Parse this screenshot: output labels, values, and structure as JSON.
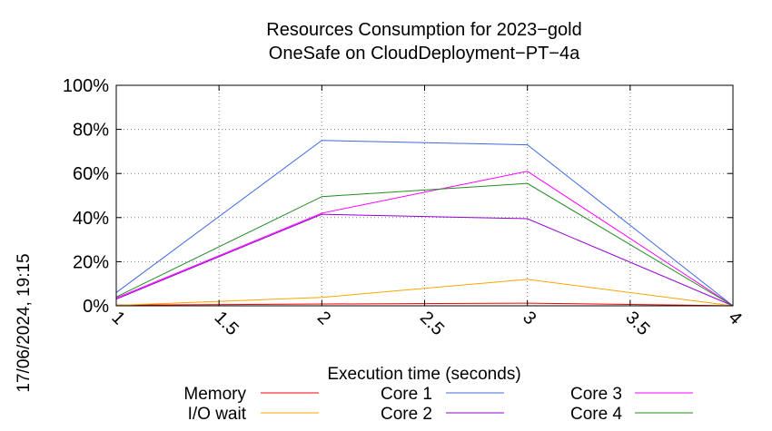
{
  "chart_data": {
    "type": "line",
    "title": "Resources Consumption for 2023−gold",
    "subtitle": "OneSafe on CloudDeployment−PT−4a",
    "xlabel": "Execution time (seconds)",
    "ylabel": "",
    "timestamp": "17/06/2024, 19:15",
    "x": [
      1,
      2,
      3,
      4
    ],
    "xlim": [
      1,
      4
    ],
    "ylim": [
      0,
      100
    ],
    "x_ticks": [
      1,
      1.5,
      2,
      2.5,
      3,
      3.5,
      4
    ],
    "x_tick_labels": [
      "1",
      "1.5",
      "2",
      "2.5",
      "3",
      "3.5",
      "4"
    ],
    "y_ticks": [
      0,
      20,
      40,
      60,
      80,
      100
    ],
    "y_tick_labels": [
      "0%",
      "20%",
      "40%",
      "60%",
      "80%",
      "100%"
    ],
    "grid": true,
    "legend_position": "bottom",
    "series": [
      {
        "name": "Memory",
        "color": "#ff0000",
        "values": [
          0.3,
          0.8,
          1.2,
          0
        ]
      },
      {
        "name": "I/O wait",
        "color": "#ffa500",
        "values": [
          0.2,
          3.8,
          12,
          0
        ]
      },
      {
        "name": "Core 1",
        "color": "#4169e1",
        "values": [
          6,
          75,
          73,
          0
        ]
      },
      {
        "name": "Core 2",
        "color": "#9400d3",
        "values": [
          3,
          41.5,
          39.5,
          0
        ]
      },
      {
        "name": "Core 3",
        "color": "#ff00ff",
        "values": [
          3.5,
          42,
          61,
          0
        ]
      },
      {
        "name": "Core 4",
        "color": "#228b22",
        "values": [
          4,
          49.5,
          55.5,
          0
        ]
      }
    ]
  }
}
